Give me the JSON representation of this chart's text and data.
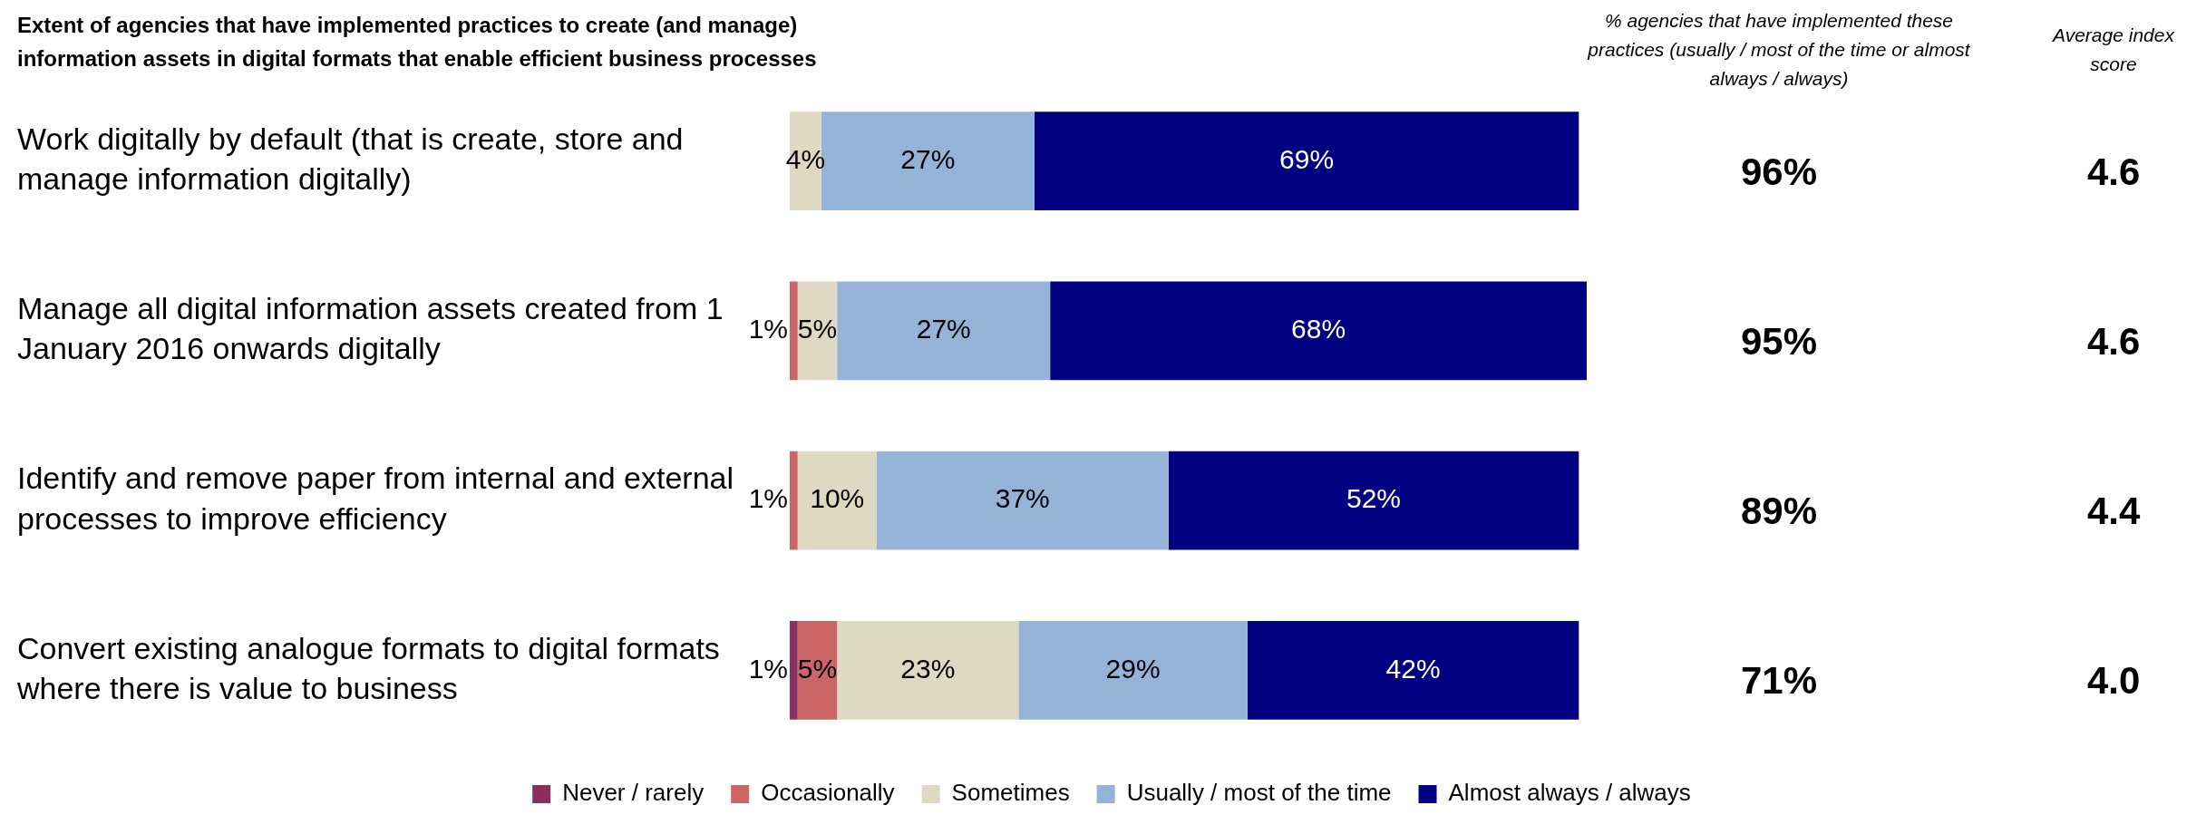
{
  "chart_data": {
    "type": "bar",
    "orientation": "horizontal",
    "stacked": true,
    "title": "Extent of agencies that have implemented practices to create (and manage) information assets in digital formats that enable efficient business processes",
    "categories": [
      "Work digitally by default (that is create, store and manage information digitally)",
      "Manage all digital information assets created from 1 January 2016 onwards digitally",
      "Identify and remove paper from internal and external processes to improve efficiency",
      "Convert existing analogue formats to digital formats where there is value to business"
    ],
    "series": [
      {
        "name": "Never / rarely",
        "color": "#8b2f5f",
        "values": [
          null,
          null,
          null,
          1
        ],
        "value_labels": [
          null,
          null,
          null,
          "1%"
        ]
      },
      {
        "name": "Occasionally",
        "color": "#cc6666",
        "values": [
          null,
          1,
          1,
          5
        ],
        "value_labels": [
          null,
          "1%",
          "1%",
          "5%"
        ]
      },
      {
        "name": "Sometimes",
        "color": "#ddd9c3",
        "values": [
          4,
          5,
          10,
          23
        ],
        "value_labels": [
          "4%",
          "5%",
          "10%",
          "23%"
        ]
      },
      {
        "name": "Usually / most of the time",
        "color": "#95b3d7",
        "values": [
          27,
          27,
          37,
          29
        ],
        "value_labels": [
          "27%",
          "27%",
          "37%",
          "29%"
        ]
      },
      {
        "name": "Almost always / always",
        "color": "#000080",
        "values": [
          69,
          68,
          52,
          42
        ],
        "value_labels": [
          "69%",
          "68%",
          "52%",
          "42%"
        ]
      }
    ],
    "xlim": [
      0,
      101
    ],
    "tick_labels": "y",
    "legend": "bottom",
    "annotations": [
      "% agencies that have implemented these practices (usually / most of the time or almost always / always)",
      "Average index score",
      "96%",
      "4.6",
      "95%",
      "4.6",
      "89%",
      "4.4",
      "71%",
      "4.0"
    ]
  }
}
